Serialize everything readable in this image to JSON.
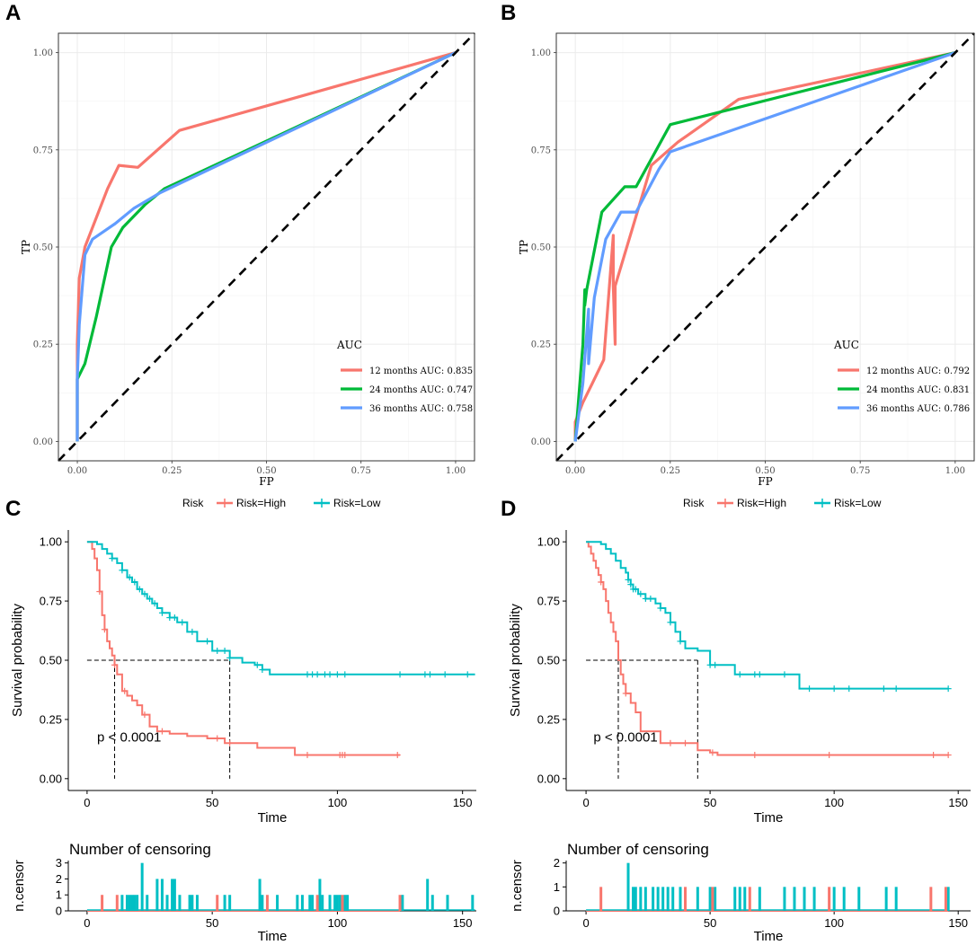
{
  "colors": {
    "red": "#F8766D",
    "green": "#00BA38",
    "blue": "#619CFF",
    "cyan": "#00BFC4",
    "grid": "#EBEBEB",
    "axis": "#333333"
  },
  "chart_data": [
    {
      "panel": "A",
      "type": "line",
      "xlabel": "FP",
      "ylabel": "TP",
      "xlim": [
        0,
        1
      ],
      "ylim": [
        0,
        1
      ],
      "ticks": [
        "0.00",
        "0.25",
        "0.50",
        "0.75",
        "1.00"
      ],
      "legend_title": "AUC",
      "series": [
        {
          "name": "12 months AUC: 0.835",
          "color": "red",
          "x": [
            0,
            0,
            0.005,
            0.02,
            0.08,
            0.11,
            0.16,
            0.27,
            1
          ],
          "y": [
            0,
            0.25,
            0.42,
            0.5,
            0.65,
            0.71,
            0.705,
            0.8,
            1
          ]
        },
        {
          "name": "24 months AUC: 0.747",
          "color": "green",
          "x": [
            0,
            0,
            0.02,
            0.05,
            0.09,
            0.12,
            0.18,
            0.23,
            1
          ],
          "y": [
            0,
            0.16,
            0.2,
            0.32,
            0.5,
            0.55,
            0.61,
            0.65,
            1
          ]
        },
        {
          "name": "36 months AUC: 0.758",
          "color": "blue",
          "x": [
            0,
            0,
            0.005,
            0.02,
            0.04,
            0.1,
            0.15,
            0.22,
            1
          ],
          "y": [
            0,
            0.16,
            0.3,
            0.48,
            0.52,
            0.56,
            0.6,
            0.64,
            1
          ]
        }
      ]
    },
    {
      "panel": "B",
      "type": "line",
      "xlabel": "FP",
      "ylabel": "TP",
      "xlim": [
        0,
        1
      ],
      "ylim": [
        0,
        1
      ],
      "ticks": [
        "0.00",
        "0.25",
        "0.50",
        "0.75",
        "1.00"
      ],
      "legend_title": "AUC",
      "series": [
        {
          "name": "12 months AUC: 0.792",
          "color": "red",
          "x": [
            0,
            0,
            0.02,
            0.045,
            0.075,
            0.1,
            0.1,
            0.105,
            0.105,
            0.2,
            0.27,
            0.43,
            1
          ],
          "y": [
            0,
            0.05,
            0.1,
            0.15,
            0.21,
            0.53,
            0.4,
            0.25,
            0.4,
            0.71,
            0.77,
            0.88,
            1
          ]
        },
        {
          "name": "24 months AUC: 0.831",
          "color": "green",
          "x": [
            0,
            0.02,
            0.025,
            0.025,
            0.03,
            0.07,
            0.13,
            0.16,
            0.25,
            1
          ],
          "y": [
            0,
            0.25,
            0.39,
            0.35,
            0.39,
            0.59,
            0.655,
            0.655,
            0.815,
            1
          ]
        },
        {
          "name": "36 months AUC: 0.786",
          "color": "blue",
          "x": [
            0,
            0.02,
            0.035,
            0.035,
            0.05,
            0.08,
            0.12,
            0.16,
            0.22,
            0.25,
            1
          ],
          "y": [
            0,
            0.15,
            0.34,
            0.2,
            0.37,
            0.52,
            0.59,
            0.59,
            0.7,
            0.745,
            1
          ]
        }
      ]
    },
    {
      "panel": "C",
      "type": "line",
      "subtype": "kaplan-meier",
      "legend_title": "Risk",
      "legend": [
        "Risk=High",
        "Risk=Low"
      ],
      "xlabel": "Time",
      "ylabel": "Survival probability",
      "xlim": [
        0,
        155
      ],
      "ylim": [
        0,
        1
      ],
      "xticks": [
        "0",
        "50",
        "100",
        "150"
      ],
      "yticks": [
        "0.00",
        "0.25",
        "0.50",
        "0.75",
        "1.00"
      ],
      "pvalue": "p < 0.0001",
      "median_lines": [
        11,
        57
      ],
      "series": [
        {
          "name": "Risk=High",
          "color": "red",
          "x": [
            0,
            2,
            3,
            4,
            5,
            6,
            7,
            8,
            9,
            10,
            11,
            12,
            14,
            16,
            18,
            20,
            22,
            25,
            28,
            33,
            40,
            48,
            55,
            68,
            83,
            125
          ],
          "y": [
            1,
            0.97,
            0.93,
            0.88,
            0.79,
            0.69,
            0.63,
            0.58,
            0.55,
            0.52,
            0.48,
            0.44,
            0.37,
            0.35,
            0.33,
            0.31,
            0.27,
            0.22,
            0.2,
            0.19,
            0.18,
            0.17,
            0.15,
            0.13,
            0.1,
            0.1
          ],
          "censors": [
            5,
            7,
            11,
            15,
            23,
            30,
            52,
            57,
            88,
            101,
            102,
            103,
            124
          ]
        },
        {
          "name": "Risk=Low",
          "color": "cyan",
          "x": [
            0,
            4,
            6,
            8,
            10,
            12,
            14,
            16,
            18,
            20,
            22,
            24,
            26,
            28,
            30,
            33,
            36,
            40,
            44,
            50,
            57,
            62,
            67,
            70,
            73,
            155
          ],
          "y": [
            1,
            0.99,
            0.97,
            0.95,
            0.93,
            0.91,
            0.88,
            0.85,
            0.83,
            0.8,
            0.78,
            0.76,
            0.74,
            0.72,
            0.7,
            0.68,
            0.66,
            0.62,
            0.58,
            0.54,
            0.51,
            0.49,
            0.48,
            0.46,
            0.44,
            0.44
          ],
          "censors": [
            10,
            14,
            17,
            19,
            21,
            23,
            25,
            27,
            30,
            33,
            35,
            38,
            42,
            48,
            52,
            55,
            57,
            68,
            70,
            88,
            90,
            92,
            95,
            97,
            100,
            103,
            125,
            135,
            137,
            143,
            152
          ]
        }
      ],
      "censor_plot": {
        "title": "Number of censoring",
        "ylabel": "n.censor",
        "xlabel": "Time",
        "ylim": [
          0,
          3
        ],
        "yticks": [
          "0",
          "1",
          "2",
          "3"
        ],
        "xticks": [
          "0",
          "50",
          "100",
          "150"
        ],
        "red": [
          [
            6,
            1
          ],
          [
            12,
            1
          ],
          [
            52,
            1
          ],
          [
            72,
            1
          ],
          [
            92,
            1
          ],
          [
            102,
            1
          ],
          [
            125,
            1
          ]
        ],
        "cyan": [
          [
            14,
            1
          ],
          [
            16,
            1
          ],
          [
            17,
            1
          ],
          [
            18,
            1
          ],
          [
            19,
            1
          ],
          [
            20,
            1
          ],
          [
            22,
            3
          ],
          [
            24,
            1
          ],
          [
            28,
            2
          ],
          [
            30,
            2
          ],
          [
            32,
            1
          ],
          [
            34,
            2
          ],
          [
            35,
            2
          ],
          [
            37,
            1
          ],
          [
            41,
            1
          ],
          [
            42,
            1
          ],
          [
            44,
            1
          ],
          [
            55,
            1
          ],
          [
            57,
            1
          ],
          [
            69,
            2
          ],
          [
            70,
            1
          ],
          [
            76,
            1
          ],
          [
            84,
            1
          ],
          [
            86,
            1
          ],
          [
            89,
            1
          ],
          [
            90,
            1
          ],
          [
            93,
            2
          ],
          [
            94,
            1
          ],
          [
            97,
            1
          ],
          [
            99,
            1
          ],
          [
            100,
            1
          ],
          [
            101,
            1
          ],
          [
            103,
            1
          ],
          [
            104,
            1
          ],
          [
            126,
            1
          ],
          [
            136,
            2
          ],
          [
            138,
            1
          ],
          [
            144,
            1
          ],
          [
            154,
            1
          ]
        ]
      }
    },
    {
      "panel": "D",
      "type": "line",
      "subtype": "kaplan-meier",
      "legend_title": "Risk",
      "legend": [
        "Risk=High",
        "Risk=Low"
      ],
      "xlabel": "Time",
      "ylabel": "Survival probability",
      "xlim": [
        0,
        150
      ],
      "ylim": [
        0,
        1
      ],
      "xticks": [
        "0",
        "50",
        "100",
        "150"
      ],
      "yticks": [
        "0.00",
        "0.25",
        "0.50",
        "0.75",
        "1.00"
      ],
      "pvalue": "p < 0.0001",
      "median_lines": [
        13,
        45
      ],
      "series": [
        {
          "name": "Risk=High",
          "color": "red",
          "x": [
            0,
            1,
            2,
            3,
            4,
            5,
            6,
            7,
            8,
            9,
            10,
            11,
            12,
            13,
            14,
            15,
            16,
            18,
            20,
            22,
            30,
            45,
            50,
            53,
            146
          ],
          "y": [
            1,
            0.98,
            0.95,
            0.92,
            0.89,
            0.86,
            0.83,
            0.8,
            0.75,
            0.7,
            0.66,
            0.62,
            0.58,
            0.5,
            0.44,
            0.4,
            0.36,
            0.32,
            0.28,
            0.2,
            0.15,
            0.12,
            0.11,
            0.1,
            0.1
          ],
          "censors": [
            6,
            16,
            34,
            40,
            51,
            68,
            98,
            140,
            146
          ]
        },
        {
          "name": "Risk=Low",
          "color": "cyan",
          "x": [
            0,
            6,
            8,
            10,
            12,
            14,
            16,
            17,
            18,
            19,
            21,
            24,
            28,
            30,
            32,
            34,
            36,
            38,
            40,
            45,
            50,
            60,
            86,
            146
          ],
          "y": [
            1,
            0.99,
            0.97,
            0.95,
            0.92,
            0.89,
            0.87,
            0.84,
            0.82,
            0.8,
            0.78,
            0.76,
            0.74,
            0.72,
            0.7,
            0.66,
            0.62,
            0.58,
            0.55,
            0.54,
            0.48,
            0.44,
            0.38,
            0.38
          ],
          "censors": [
            17,
            18,
            19,
            20,
            22,
            24,
            26,
            30,
            34,
            38,
            50,
            52,
            62,
            68,
            70,
            80,
            90,
            100,
            106,
            120,
            125,
            146
          ]
        }
      ],
      "censor_plot": {
        "title": "Number of censoring",
        "ylabel": "n.censor",
        "xlabel": "Time",
        "ylim": [
          0,
          2
        ],
        "yticks": [
          "0",
          "1",
          "2"
        ],
        "xticks": [
          "0",
          "50",
          "100",
          "150"
        ],
        "red": [
          [
            6,
            1
          ],
          [
            40,
            1
          ],
          [
            51,
            1
          ],
          [
            66,
            1
          ],
          [
            98,
            1
          ],
          [
            139,
            1
          ],
          [
            145,
            1
          ]
        ],
        "cyan": [
          [
            17,
            2
          ],
          [
            19,
            1
          ],
          [
            20,
            1
          ],
          [
            22,
            1
          ],
          [
            24,
            1
          ],
          [
            27,
            1
          ],
          [
            29,
            1
          ],
          [
            31,
            1
          ],
          [
            33,
            1
          ],
          [
            35,
            1
          ],
          [
            38,
            1
          ],
          [
            45,
            1
          ],
          [
            50,
            1
          ],
          [
            52,
            1
          ],
          [
            60,
            1
          ],
          [
            62,
            1
          ],
          [
            64,
            1
          ],
          [
            70,
            1
          ],
          [
            80,
            1
          ],
          [
            84,
            1
          ],
          [
            88,
            1
          ],
          [
            92,
            1
          ],
          [
            100,
            1
          ],
          [
            104,
            1
          ],
          [
            110,
            1
          ],
          [
            121,
            1
          ],
          [
            125,
            1
          ],
          [
            146,
            1
          ]
        ]
      }
    }
  ]
}
